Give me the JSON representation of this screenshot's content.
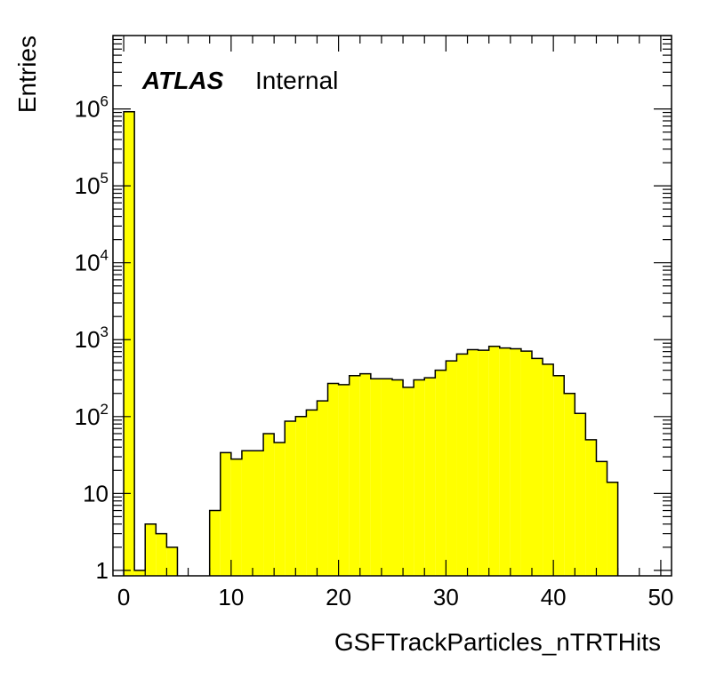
{
  "chart_data": {
    "type": "bar",
    "title": "",
    "xlabel": "GSFTrackParticles_nTRTHits",
    "ylabel": "Entries",
    "label_bold": "ATLAS",
    "label_rest": "Internal",
    "xlim": [
      -1,
      51
    ],
    "ylim": [
      0.85,
      9000000
    ],
    "log_y": true,
    "grid": false,
    "fill_color": "#ffff00",
    "line_color": "#000000",
    "x_ticks": [
      {
        "value": 0,
        "label": "0"
      },
      {
        "value": 10,
        "label": "10"
      },
      {
        "value": 20,
        "label": "20"
      },
      {
        "value": 30,
        "label": "30"
      },
      {
        "value": 40,
        "label": "40"
      },
      {
        "value": 50,
        "label": "50"
      }
    ],
    "y_ticks": [
      {
        "value": 1,
        "base": "1",
        "exp": ""
      },
      {
        "value": 10,
        "base": "10",
        "exp": ""
      },
      {
        "value": 100,
        "base": "10",
        "exp": "2"
      },
      {
        "value": 1000,
        "base": "10",
        "exp": "3"
      },
      {
        "value": 10000,
        "base": "10",
        "exp": "4"
      },
      {
        "value": 100000,
        "base": "10",
        "exp": "5"
      },
      {
        "value": 1000000,
        "base": "10",
        "exp": "6"
      }
    ],
    "bin_width": 1,
    "bin_starts": [
      0,
      1,
      2,
      3,
      4,
      5,
      6,
      7,
      8,
      9,
      10,
      11,
      12,
      13,
      14,
      15,
      16,
      17,
      18,
      19,
      20,
      21,
      22,
      23,
      24,
      25,
      26,
      27,
      28,
      29,
      30,
      31,
      32,
      33,
      34,
      35,
      36,
      37,
      38,
      39,
      40,
      41,
      42,
      43,
      44,
      45
    ],
    "values": [
      920000,
      1,
      4,
      3,
      2,
      0,
      0,
      0,
      6,
      34,
      28,
      36,
      36,
      60,
      46,
      87,
      100,
      122,
      160,
      270,
      260,
      340,
      360,
      310,
      310,
      300,
      240,
      300,
      320,
      400,
      530,
      650,
      740,
      730,
      820,
      780,
      760,
      710,
      570,
      480,
      340,
      200,
      110,
      50,
      26,
      14
    ]
  }
}
